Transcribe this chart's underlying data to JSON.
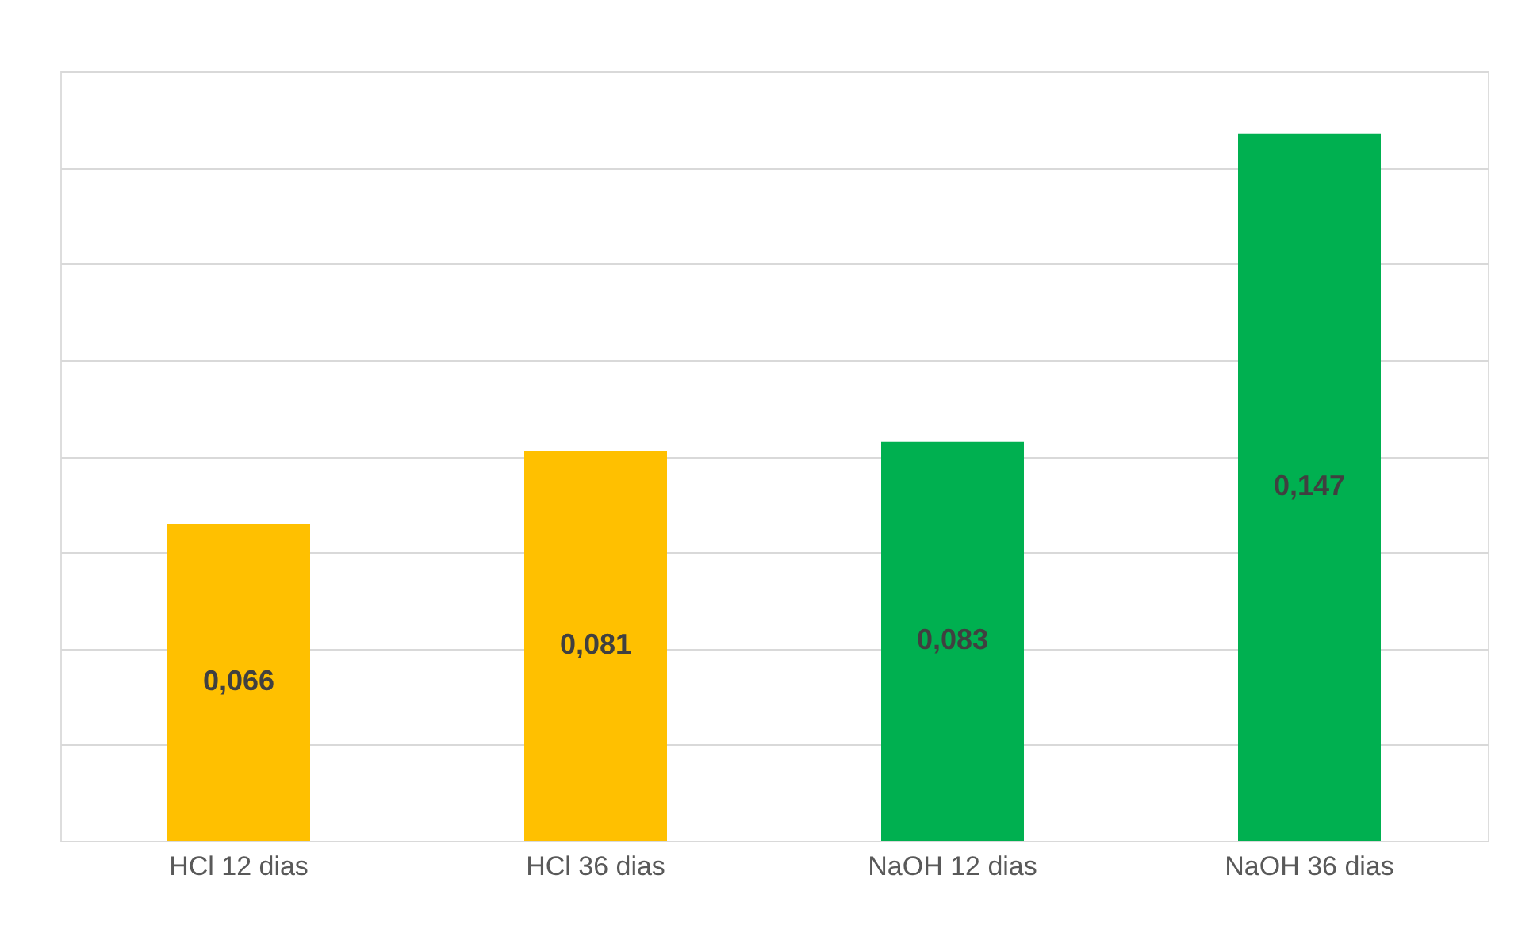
{
  "chart_data": {
    "type": "bar",
    "categories": [
      "HCl 12 dias",
      "HCl 36 dias",
      "NaOH 12 dias",
      "NaOH 36 dias"
    ],
    "values": [
      0.066,
      0.081,
      0.083,
      0.147
    ],
    "colors": [
      "#ffc000",
      "#ffc000",
      "#00b050",
      "#00b050"
    ],
    "ylim": [
      0,
      0.16
    ],
    "yticks": [
      {
        "value": 0,
        "label": null
      },
      {
        "value": 0.02,
        "label": null
      },
      {
        "value": 0.04,
        "label": null
      },
      {
        "value": 0.06,
        "label": null
      },
      {
        "value": 0.08,
        "label": null
      },
      {
        "value": 0.1,
        "label": null
      },
      {
        "value": 0.12,
        "label": null
      },
      {
        "value": 0.14,
        "label": null
      },
      {
        "value": 0.16,
        "label": null
      }
    ],
    "value_labels": [
      "0,066",
      "0,081",
      "0,083",
      "0,147"
    ],
    "grid": "y",
    "tick_labels": "x"
  }
}
